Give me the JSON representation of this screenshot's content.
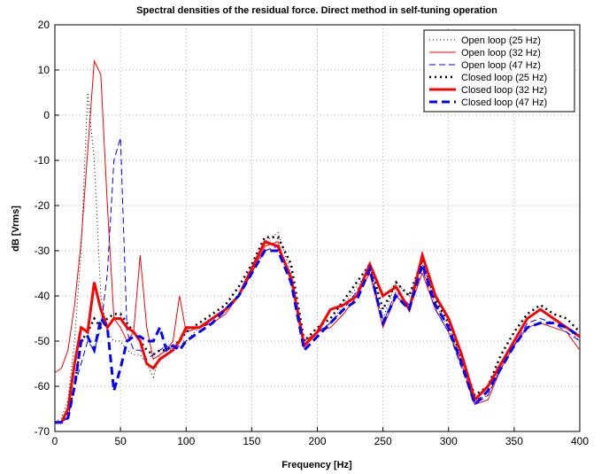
{
  "chart_data": {
    "type": "line",
    "title": "Spectral densities of the residual force. Direct method in self-tuning operation",
    "x_label": "Frequency [Hz]",
    "y_label": "dB [Vrms]",
    "x": [
      0,
      5,
      10,
      15,
      20,
      25,
      30,
      35,
      40,
      45,
      50,
      55,
      60,
      65,
      70,
      75,
      80,
      85,
      90,
      95,
      100,
      110,
      120,
      130,
      140,
      150,
      160,
      170,
      180,
      190,
      200,
      210,
      220,
      230,
      240,
      250,
      260,
      270,
      280,
      290,
      300,
      310,
      320,
      330,
      340,
      350,
      360,
      370,
      380,
      390,
      400
    ],
    "series": [
      {
        "name": "Open loop (25 Hz)",
        "color": "#000000",
        "dash": "dotted",
        "width": 1,
        "values": [
          -68,
          -67,
          -63,
          -50,
          -30,
          5,
          -10,
          -40,
          -48,
          -50,
          -50,
          -52,
          -53,
          -53,
          -55,
          -58,
          -53,
          -52,
          -52,
          -50,
          -50,
          -47,
          -45,
          -43,
          -40,
          -35,
          -28,
          -26,
          -35,
          -50,
          -48,
          -46,
          -42,
          -38,
          -34,
          -45,
          -37,
          -40,
          -33,
          -42,
          -47,
          -55,
          -63,
          -62,
          -55,
          -50,
          -45,
          -43,
          -45,
          -47,
          -50
        ]
      },
      {
        "name": "Open loop (32 Hz)",
        "color": "#ff0000",
        "dash": "solid",
        "width": 1,
        "values": [
          -57,
          -56,
          -52,
          -42,
          -28,
          -8,
          12,
          9,
          -20,
          -45,
          -47,
          -50,
          -48,
          -31,
          -47,
          -54,
          -53,
          -52,
          -50,
          -40,
          -48,
          -47,
          -46,
          -44,
          -40,
          -35,
          -29,
          -28,
          -37,
          -50,
          -48,
          -47,
          -44,
          -40,
          -35,
          -47,
          -40,
          -43,
          -35,
          -43,
          -48,
          -55,
          -64,
          -63,
          -56,
          -51,
          -47,
          -46,
          -47,
          -48,
          -52
        ]
      },
      {
        "name": "Open loop (47 Hz)",
        "color": "#0000ff",
        "dash": "dashed",
        "width": 1,
        "values": [
          -68,
          -68,
          -67,
          -60,
          -55,
          -50,
          -52,
          -47,
          -35,
          -10,
          -5,
          -48,
          -52,
          -52,
          -54,
          -53,
          -52,
          -51,
          -52,
          -51,
          -50,
          -48,
          -45,
          -43,
          -40,
          -35,
          -30,
          -29,
          -36,
          -51,
          -48,
          -46,
          -43,
          -39,
          -34,
          -46,
          -39,
          -42,
          -34,
          -43,
          -48,
          -56,
          -64,
          -62,
          -56,
          -51,
          -46,
          -45,
          -46,
          -48,
          -50
        ]
      },
      {
        "name": "Closed loop (25 Hz)",
        "color": "#000000",
        "dash": "dotted",
        "width": 2.5,
        "values": [
          -68,
          -68,
          -66,
          -60,
          -50,
          -48,
          -45,
          -47,
          -45,
          -44,
          -44,
          -46,
          -48,
          -50,
          -52,
          -53,
          -52,
          -52,
          -51,
          -50,
          -48,
          -46,
          -44,
          -42,
          -38,
          -33,
          -27,
          -27,
          -33,
          -50,
          -47,
          -45,
          -41,
          -37,
          -33,
          -43,
          -37,
          -40,
          -32,
          -41,
          -46,
          -54,
          -62,
          -60,
          -53,
          -48,
          -44,
          -42,
          -44,
          -45,
          -48
        ]
      },
      {
        "name": "Closed loop (32 Hz)",
        "color": "#ff0000",
        "dash": "solid",
        "width": 3,
        "values": [
          -68,
          -68,
          -65,
          -55,
          -47,
          -48,
          -37,
          -43,
          -47,
          -45,
          -45,
          -47,
          -48,
          -50,
          -55,
          -56,
          -54,
          -53,
          -52,
          -50,
          -47,
          -47,
          -45,
          -43,
          -40,
          -34,
          -28,
          -29,
          -36,
          -51,
          -48,
          -43,
          -42,
          -40,
          -33,
          -40,
          -38,
          -43,
          -31,
          -40,
          -45,
          -53,
          -63,
          -60,
          -55,
          -50,
          -45,
          -43,
          -45,
          -47,
          -49
        ]
      },
      {
        "name": "Closed loop (47 Hz)",
        "color": "#0000ff",
        "dash": "dashed",
        "width": 3,
        "values": [
          -68,
          -68,
          -67,
          -60,
          -50,
          -49,
          -52,
          -45,
          -47,
          -61,
          -56,
          -50,
          -49,
          -49,
          -50,
          -50,
          -47,
          -52,
          -51,
          -52,
          -50,
          -48,
          -46,
          -43,
          -40,
          -35,
          -30,
          -30,
          -37,
          -52,
          -49,
          -46,
          -43,
          -41,
          -34,
          -46,
          -40,
          -43,
          -33,
          -42,
          -47,
          -55,
          -64,
          -61,
          -56,
          -51,
          -47,
          -46,
          -46,
          -47,
          -49
        ]
      }
    ],
    "xlim": [
      0,
      400
    ],
    "ylim": [
      -70,
      20
    ],
    "xticks": [
      0,
      50,
      100,
      150,
      200,
      250,
      300,
      350,
      400
    ],
    "yticks": [
      -70,
      -60,
      -50,
      -40,
      -30,
      -20,
      -10,
      0,
      10,
      20
    ],
    "grid": true,
    "legend": "top-right"
  }
}
